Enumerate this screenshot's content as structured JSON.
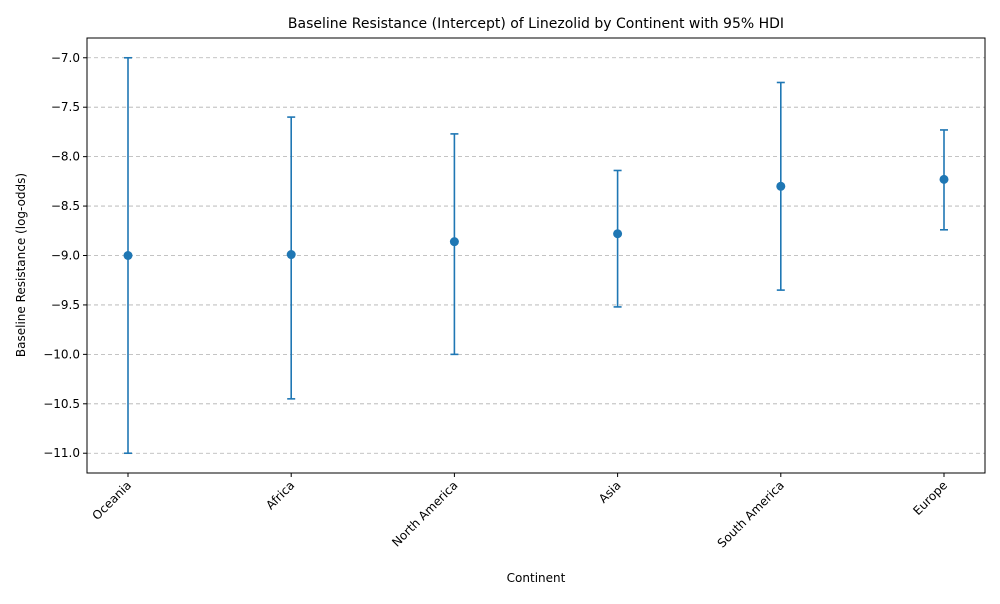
{
  "chart_data": {
    "type": "scatter",
    "title": "Baseline Resistance (Intercept) of Linezolid by Continent with 95% HDI",
    "xlabel": "Continent",
    "ylabel": "Baseline Resistance (log-odds)",
    "categories": [
      "Oceania",
      "Africa",
      "North America",
      "Asia",
      "South America",
      "Europe"
    ],
    "series": [
      {
        "values": [
          -9.0,
          -8.99,
          -8.86,
          -8.78,
          -8.3,
          -8.23
        ],
        "hdi_lower": [
          -11.0,
          -10.45,
          -10.0,
          -9.52,
          -9.35,
          -8.74
        ],
        "hdi_upper": [
          -7.0,
          -7.6,
          -7.77,
          -8.14,
          -7.25,
          -7.73
        ]
      }
    ],
    "ylim": [
      -11.2,
      -6.8
    ],
    "yticks": [
      -7.0,
      -7.5,
      -8.0,
      -8.5,
      -9.0,
      -9.5,
      -10.0,
      -10.5,
      -11.0
    ],
    "ytick_labels": [
      "−7.0",
      "−7.5",
      "−8.0",
      "−8.5",
      "−9.0",
      "−9.5",
      "−10.0",
      "−10.5",
      "−11.0"
    ],
    "grid": "y-only",
    "legend": "none",
    "colors": {
      "series": "#1f77b4",
      "grid": "#b0b0b0"
    }
  }
}
